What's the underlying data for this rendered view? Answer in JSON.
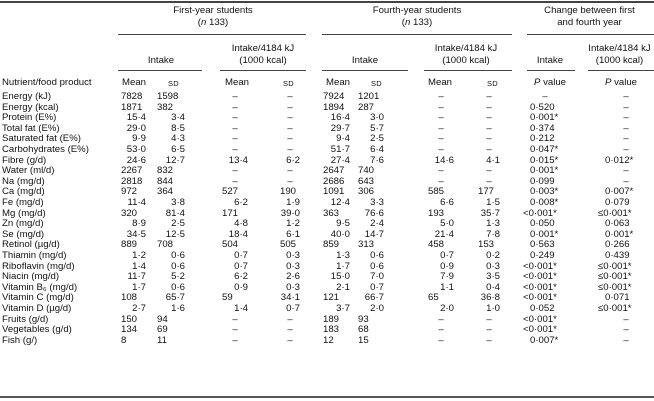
{
  "header": {
    "group1": "First-year students",
    "group1_n": "133",
    "group2": "Fourth-year students",
    "group2_n": "133",
    "group3_line1": "Change between first",
    "group3_line2": "and fourth year",
    "intake": "Intake",
    "per_energy_line1": "Intake/4184 kJ",
    "per_energy_line2": "(1000 kcal)",
    "row_label": "Nutrient/food product",
    "mean": "Mean",
    "sd": "SD",
    "p_value": "value",
    "p": "P",
    "n_prefix": "n"
  },
  "rows": [
    {
      "name": "Energy (kJ)",
      "v": [
        "7828",
        "1598",
        "–",
        "–",
        "7924",
        "1201",
        "–",
        "–",
        "–",
        "–"
      ]
    },
    {
      "name": "Energy (kcal)",
      "v": [
        "1871",
        "382",
        "–",
        "–",
        "1894",
        "287",
        "–",
        "–",
        "0·520",
        "–"
      ]
    },
    {
      "name": "Protein (E%)",
      "v": [
        "15·4",
        "3·4",
        "–",
        "–",
        "16·4",
        "3·0",
        "–",
        "–",
        "0·001*",
        "–"
      ]
    },
    {
      "name": "Total fat (E%)",
      "v": [
        "29·0",
        "8·5",
        "–",
        "–",
        "29·7",
        "5·7",
        "–",
        "–",
        "0·374",
        "–"
      ]
    },
    {
      "name": "Saturated fat (E%)",
      "v": [
        "9·9",
        "4·3",
        "–",
        "–",
        "9·4",
        "2·5",
        "–",
        "–",
        "0·212",
        "–"
      ]
    },
    {
      "name": "Carbohydrates (E%)",
      "v": [
        "53·0",
        "6·5",
        "–",
        "–",
        "51·7",
        "6·4",
        "–",
        "–",
        "0·047*",
        "–"
      ]
    },
    {
      "name": "Fibre (g/d)",
      "v": [
        "24·6",
        "12·7",
        "13·4",
        "6·2",
        "27·4",
        "7·6",
        "14·6",
        "4·1",
        "0·015*",
        "0·012*"
      ]
    },
    {
      "name": "Water (ml/d)",
      "v": [
        "2267",
        "832",
        "–",
        "–",
        "2647",
        "740",
        "–",
        "–",
        "0·001*",
        "–"
      ]
    },
    {
      "name": "Na (mg/d)",
      "v": [
        "2818",
        "844",
        "–",
        "–",
        "2686",
        "643",
        "–",
        "–",
        "0·099",
        "–"
      ]
    },
    {
      "name": "Ca (mg/d)",
      "v": [
        "972",
        "364",
        "527",
        "190",
        "1091",
        "306",
        "585",
        "177",
        "0·003*",
        "0·007*"
      ]
    },
    {
      "name": "Fe (mg/d)",
      "v": [
        "11·4",
        "3·8",
        "6·2",
        "1·9",
        "12·4",
        "3·3",
        "6·6",
        "1·5",
        "0·008*",
        "0·079"
      ]
    },
    {
      "name": "Mg (mg/d)",
      "v": [
        "320",
        "81·4",
        "171",
        "39·0",
        "363",
        "76·6",
        "193",
        "35·7",
        "<0·001*",
        "≤0·001*"
      ]
    },
    {
      "name": "Zn (mg/d)",
      "v": [
        "8·9",
        "2·5",
        "4·8",
        "1·2",
        "9·5",
        "2·4",
        "5·0",
        "1·3",
        "0·050",
        "0·063"
      ]
    },
    {
      "name": "Se (mg/d)",
      "v": [
        "34·5",
        "12·5",
        "18·4",
        "6·1",
        "40·0",
        "14·7",
        "21·4",
        "7·8",
        "0·001*",
        "0·001*"
      ]
    },
    {
      "name": "Retinol (µg/d)",
      "v": [
        "889",
        "708",
        "504",
        "505",
        "859",
        "313",
        "458",
        "153",
        "0·563",
        "0·266"
      ]
    },
    {
      "name": "Thiamin (mg/d)",
      "v": [
        "1·2",
        "0·6",
        "0·7",
        "0·3",
        "1·3",
        "0·6",
        "0·7",
        "0·2",
        "0·249",
        "0·439"
      ]
    },
    {
      "name": "Riboflavin (mg/d)",
      "v": [
        "1·4",
        "0·6",
        "0·7",
        "0·3",
        "1·7",
        "0·6",
        "0·9",
        "0·3",
        "<0·001*",
        "≤0·001*"
      ]
    },
    {
      "name": "Niacin (mg/d)",
      "v": [
        "11·7",
        "5·2",
        "6·2",
        "2·6",
        "15·0",
        "7·0",
        "7·9",
        "3·5",
        "<0·001*",
        "≤0·001*"
      ]
    },
    {
      "name": "Vitamin B₆ (mg/d)",
      "v": [
        "1·7",
        "0·6",
        "0·9",
        "0·3",
        "2·1",
        "0·7",
        "1·1",
        "0·4",
        "<0·001*",
        "≤0·001*"
      ]
    },
    {
      "name": "Vitamin C (mg/d)",
      "v": [
        "108",
        "65·7",
        "59",
        "34·1",
        "121",
        "66·7",
        "65",
        "36·8",
        "<0·001*",
        "0·071"
      ]
    },
    {
      "name": "Vitamin D (µg/d)",
      "v": [
        "2·7",
        "1·6",
        "1·4",
        "0·7",
        "3·7",
        "2·0",
        "2·0",
        "1·0",
        "0·052",
        "≤0·001*"
      ]
    },
    {
      "name": "Fruits (g/d)",
      "v": [
        "150",
        "94",
        "–",
        "–",
        "189",
        "93",
        "–",
        "–",
        "<0·001*",
        "–"
      ]
    },
    {
      "name": "Vegetables (g/d)",
      "v": [
        "134",
        "69",
        "–",
        "–",
        "183",
        "68",
        "–",
        "–",
        "<0·001*",
        "–"
      ]
    },
    {
      "name": "Fish (g/)",
      "v": [
        "8",
        "11",
        "–",
        "–",
        "12",
        "15",
        "–",
        "–",
        "0·007*",
        "–"
      ]
    }
  ]
}
